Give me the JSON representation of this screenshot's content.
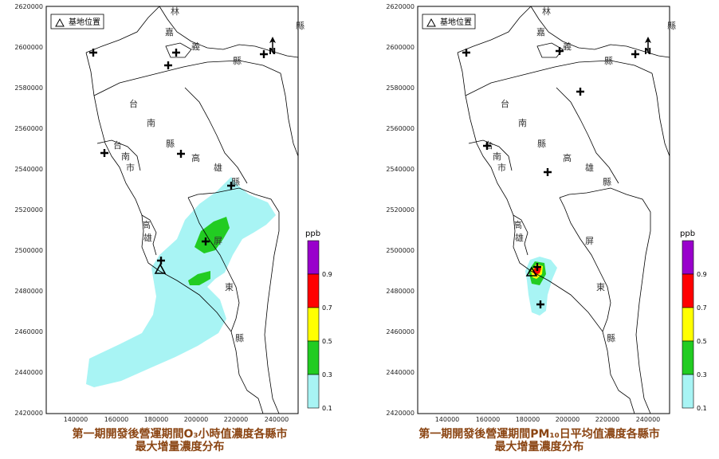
{
  "left_panel": {
    "legend_label": "基地位置",
    "north_label": "N",
    "unit": "ppb",
    "caption_line1": "第一期開發後營運期間O₃小時值濃度各縣市",
    "caption_line2": "最大增量濃度分布",
    "y_ticks": [
      "2620000",
      "2600000",
      "2580000",
      "2560000",
      "2540000",
      "2520000",
      "2500000",
      "2480000",
      "2460000",
      "2440000",
      "2420000"
    ],
    "x_ticks": [
      "140000",
      "160000",
      "180000",
      "200000",
      "220000",
      "240000"
    ],
    "levels": [
      "0.9",
      "0.7",
      "0.5",
      "0.3",
      "0.1"
    ],
    "county_labels": [
      "嘉",
      "義",
      "縣",
      "台",
      "南",
      "縣",
      "台",
      "南",
      "市",
      "高",
      "雄",
      "高",
      "雄",
      "屏",
      "東",
      "縣",
      "縣",
      "縣",
      "林"
    ]
  },
  "right_panel": {
    "legend_label": "基地位置",
    "north_label": "N",
    "unit": "ppb",
    "caption_line1": "第一期開發後營運期間PM₁₀日平均值濃度各縣市",
    "caption_line2": "最大增量濃度分布",
    "y_ticks": [
      "2620000",
      "2600000",
      "2580000",
      "2560000",
      "2540000",
      "2520000",
      "2500000",
      "2480000",
      "2460000",
      "2440000",
      "2420000"
    ],
    "x_ticks": [
      "140000",
      "160000",
      "180000",
      "200000",
      "220000",
      "240000"
    ],
    "levels": [
      "0.9",
      "0.7",
      "0.5",
      "0.3",
      "0.1"
    ],
    "county_labels": [
      "嘉",
      "義",
      "縣",
      "台",
      "南",
      "縣",
      "台",
      "南",
      "市",
      "高",
      "雄",
      "高",
      "雄",
      "屏",
      "東",
      "縣",
      "縣",
      "縣",
      "林"
    ]
  },
  "colors": {
    "lv1": "#a8f4f4",
    "lv2": "#22cc22",
    "lv3": "#ffff00",
    "lv4": "#ff0000",
    "lv5": "#9900cc",
    "caption": "#8b4513"
  }
}
